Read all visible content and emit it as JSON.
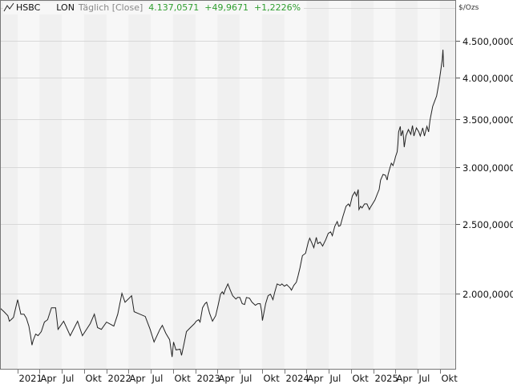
{
  "header": {
    "symbol": "HSBC",
    "exchange": "LON",
    "frequency": "Täglich [Close]",
    "last": "4.137,0571",
    "change": "+49,9671",
    "change_pct": "+1,2226%",
    "icon": "line-chart-icon"
  },
  "colors": {
    "positive": "#2f9e2f",
    "line": "#222222",
    "band_dark": "#f0f0f0",
    "band_light": "#f7f7f7",
    "grid": "#d8d8d8"
  },
  "chart_data": {
    "type": "line",
    "yscale": "log",
    "ylabel": "$/Ozs",
    "ylim": [
      1580,
      4950
    ],
    "xlim": [
      "2020-10-20",
      "2025-10-20"
    ],
    "grid": true,
    "y_ticks": [
      {
        "value": 2000,
        "label": "2.000,0000"
      },
      {
        "value": 2500,
        "label": "2.500,0000"
      },
      {
        "value": 3000,
        "label": "3.000,0000"
      },
      {
        "value": 3500,
        "label": "3.500,0000"
      },
      {
        "value": 4000,
        "label": "4.000,0000"
      },
      {
        "value": 4500,
        "label": "4.500,0000"
      },
      {
        "value": 5000,
        "label": ""
      }
    ],
    "x_ticks": [
      {
        "date": "2021-01-01",
        "label": "2021"
      },
      {
        "date": "2021-04-01",
        "label": "Apr"
      },
      {
        "date": "2021-07-01",
        "label": "Jul"
      },
      {
        "date": "2021-10-01",
        "label": "Okt"
      },
      {
        "date": "2022-01-01",
        "label": "2022"
      },
      {
        "date": "2022-04-01",
        "label": "Apr"
      },
      {
        "date": "2022-07-01",
        "label": "Jul"
      },
      {
        "date": "2022-10-01",
        "label": "Okt"
      },
      {
        "date": "2023-01-01",
        "label": "2023"
      },
      {
        "date": "2023-04-01",
        "label": "Apr"
      },
      {
        "date": "2023-07-01",
        "label": "Jul"
      },
      {
        "date": "2023-10-01",
        "label": "Okt"
      },
      {
        "date": "2024-01-01",
        "label": "2024"
      },
      {
        "date": "2024-04-01",
        "label": "Apr"
      },
      {
        "date": "2024-07-01",
        "label": "Jul"
      },
      {
        "date": "2024-10-01",
        "label": "Okt"
      },
      {
        "date": "2025-01-01",
        "label": "2025"
      },
      {
        "date": "2025-04-01",
        "label": "Apr"
      },
      {
        "date": "2025-07-01",
        "label": "Jul"
      },
      {
        "date": "2025-10-01",
        "label": "Okt"
      }
    ],
    "series": [
      {
        "x": [
          "2020-10-20",
          "2020-11-06",
          "2020-11-22",
          "2020-11-28",
          "2020-12-05",
          "2020-12-15",
          "2021-01-01",
          "2021-01-14",
          "2021-01-27",
          "2021-02-06",
          "2021-02-16",
          "2021-02-23",
          "2021-03-01",
          "2021-03-06",
          "2021-03-16",
          "2021-03-26",
          "2021-04-08",
          "2021-04-21",
          "2021-05-04",
          "2021-05-20",
          "2021-06-06",
          "2021-06-16",
          "2021-07-09",
          "2021-08-05",
          "2021-09-04",
          "2021-09-24",
          "2021-10-26",
          "2021-11-12",
          "2021-11-25",
          "2021-12-11",
          "2022-01-01",
          "2022-01-31",
          "2022-02-16",
          "2022-03-05",
          "2022-03-18",
          "2022-04-14",
          "2022-04-24",
          "2022-05-10",
          "2022-06-09",
          "2022-06-29",
          "2022-07-15",
          "2022-08-08",
          "2022-08-18",
          "2022-09-01",
          "2022-09-17",
          "2022-09-27",
          "2022-10-03",
          "2022-10-13",
          "2022-10-30",
          "2022-11-05",
          "2022-11-15",
          "2022-11-25",
          "2022-12-11",
          "2022-12-28",
          "2023-01-04",
          "2023-01-14",
          "2023-01-20",
          "2023-01-30",
          "2023-02-09",
          "2023-02-16",
          "2023-02-28",
          "2023-03-12",
          "2023-03-25",
          "2023-04-04",
          "2023-04-14",
          "2023-04-21",
          "2023-04-27",
          "2023-05-04",
          "2023-05-14",
          "2023-05-24",
          "2023-06-03",
          "2023-06-16",
          "2023-06-23",
          "2023-07-02",
          "2023-07-12",
          "2023-07-22",
          "2023-07-29",
          "2023-08-11",
          "2023-08-21",
          "2023-09-04",
          "2023-09-14",
          "2023-09-24",
          "2023-09-30",
          "2023-10-03",
          "2023-10-16",
          "2023-10-26",
          "2023-11-05",
          "2023-11-15",
          "2023-11-22",
          "2023-12-02",
          "2023-12-15",
          "2023-12-22",
          "2024-01-01",
          "2024-01-11",
          "2024-01-17",
          "2024-01-24",
          "2024-01-30",
          "2024-02-09",
          "2024-02-19",
          "2024-02-26",
          "2024-03-05",
          "2024-03-15",
          "2024-03-28",
          "2024-04-08",
          "2024-04-14",
          "2024-04-24",
          "2024-05-01",
          "2024-05-11",
          "2024-05-17",
          "2024-05-27",
          "2024-06-06",
          "2024-06-19",
          "2024-06-29",
          "2024-07-09",
          "2024-07-16",
          "2024-07-26",
          "2024-08-05",
          "2024-08-11",
          "2024-08-18",
          "2024-08-28",
          "2024-09-10",
          "2024-09-20",
          "2024-09-26",
          "2024-10-06",
          "2024-10-16",
          "2024-10-23",
          "2024-10-30",
          "2024-11-02",
          "2024-11-09",
          "2024-11-15",
          "2024-11-25",
          "2024-12-05",
          "2024-12-15",
          "2024-12-18",
          "2024-12-28",
          "2025-01-07",
          "2025-01-17",
          "2025-01-24",
          "2025-01-30",
          "2025-02-09",
          "2025-02-19",
          "2025-02-26",
          "2025-03-02",
          "2025-03-09",
          "2025-03-15",
          "2025-03-22",
          "2025-03-29",
          "2025-04-01",
          "2025-04-08",
          "2025-04-11",
          "2025-04-14",
          "2025-04-21",
          "2025-04-24",
          "2025-05-01",
          "2025-05-04",
          "2025-05-07",
          "2025-05-14",
          "2025-05-24",
          "2025-06-03",
          "2025-06-10",
          "2025-06-16",
          "2025-06-26",
          "2025-07-06",
          "2025-07-12",
          "2025-07-22",
          "2025-07-29",
          "2025-08-08",
          "2025-08-15",
          "2025-08-21",
          "2025-09-01",
          "2025-09-17",
          "2025-09-27",
          "2025-10-03",
          "2025-10-10",
          "2025-10-13",
          "2025-10-16"
        ],
        "y": [
          1913,
          1889,
          1865,
          1832,
          1841,
          1855,
          1963,
          1874,
          1874,
          1850,
          1804,
          1749,
          1697,
          1723,
          1758,
          1749,
          1772,
          1827,
          1841,
          1913,
          1913,
          1785,
          1832,
          1749,
          1832,
          1749,
          1818,
          1874,
          1795,
          1785,
          1827,
          1804,
          1874,
          2003,
          1947,
          1988,
          1889,
          1879,
          1860,
          1785,
          1714,
          1785,
          1808,
          1763,
          1727,
          1634,
          1714,
          1671,
          1675,
          1642,
          1705,
          1772,
          1795,
          1818,
          1832,
          1841,
          1827,
          1913,
          1938,
          1947,
          1879,
          1832,
          1865,
          1928,
          1998,
          2013,
          1998,
          2029,
          2065,
          2024,
          1988,
          1967,
          1977,
          1977,
          1938,
          1933,
          1977,
          1972,
          1947,
          1928,
          1938,
          1938,
          1889,
          1836,
          1938,
          1988,
          1998,
          1963,
          2008,
          2065,
          2055,
          2065,
          2050,
          2060,
          2050,
          2039,
          2024,
          2055,
          2076,
          2118,
          2173,
          2261,
          2278,
          2361,
          2391,
          2349,
          2319,
          2397,
          2349,
          2361,
          2331,
          2379,
          2428,
          2440,
          2410,
          2484,
          2522,
          2484,
          2490,
          2561,
          2648,
          2668,
          2648,
          2737,
          2772,
          2737,
          2794,
          2621,
          2648,
          2634,
          2668,
          2668,
          2621,
          2634,
          2668,
          2703,
          2758,
          2794,
          2880,
          2933,
          2925,
          2880,
          2933,
          2994,
          3040,
          3017,
          3071,
          3103,
          3153,
          3234,
          3361,
          3421,
          3317,
          3378,
          3301,
          3201,
          3317,
          3387,
          3335,
          3430,
          3317,
          3404,
          3361,
          3317,
          3404,
          3317,
          3421,
          3361,
          3492,
          3647,
          3771,
          3939,
          4072,
          4232,
          4375,
          4137
        ]
      }
    ]
  }
}
